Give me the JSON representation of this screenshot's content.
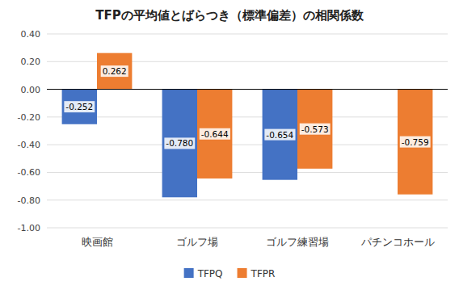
{
  "chart_data": {
    "type": "bar",
    "title": "TFPの平均値とばらつき（標準偏差）の相関係数",
    "categories": [
      "映画館",
      "ゴルフ場",
      "ゴルフ練習場",
      "パチンコホール"
    ],
    "series": [
      {
        "name": "TFPQ",
        "color": "#4472C4",
        "values": [
          -0.252,
          -0.78,
          -0.654,
          null
        ],
        "value_labels": [
          "-0.252",
          "-0.780",
          "-0.654",
          null
        ]
      },
      {
        "name": "TFPR",
        "color": "#ED7D31",
        "values": [
          0.262,
          -0.644,
          -0.573,
          -0.759
        ],
        "value_labels": [
          "0.262",
          "-0.644",
          "-0.573",
          "-0.759"
        ]
      }
    ],
    "ylim": [
      -1.0,
      0.4
    ],
    "yticks": [
      {
        "value": -1.0,
        "label": "-1.00"
      },
      {
        "value": -0.8,
        "label": "-0.80"
      },
      {
        "value": -0.6,
        "label": "-0.60"
      },
      {
        "value": -0.4,
        "label": "-0.40"
      },
      {
        "value": -0.2,
        "label": "-0.20"
      },
      {
        "value": 0.0,
        "label": "0.00"
      },
      {
        "value": 0.2,
        "label": "0.20"
      },
      {
        "value": 0.4,
        "label": "0.40"
      }
    ],
    "grid": true,
    "legend": "bottom",
    "data_labels": true
  }
}
